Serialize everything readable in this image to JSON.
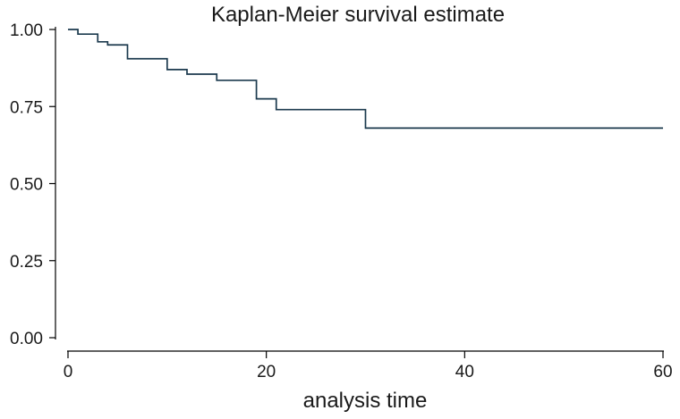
{
  "chart_data": {
    "type": "line",
    "title": "Kaplan-Meier survival estimate",
    "xlabel": "analysis time",
    "ylabel": "",
    "xlim": [
      0,
      60
    ],
    "ylim": [
      0,
      1
    ],
    "xticks": [
      0,
      20,
      40,
      60
    ],
    "xtick_labels": [
      "0",
      "20",
      "40",
      "60"
    ],
    "yticks": [
      0,
      0.25,
      0.5,
      0.75,
      1.0
    ],
    "ytick_labels": [
      "0.00",
      "0.25",
      "0.50",
      "0.75",
      "1.00"
    ],
    "grid": false,
    "line_color": "#1c3a4e",
    "series": [
      {
        "step": "post",
        "x": [
          0,
          1,
          3,
          4,
          6,
          10,
          12,
          15,
          19,
          21,
          30,
          60
        ],
        "y": [
          1.0,
          0.985,
          0.96,
          0.95,
          0.905,
          0.87,
          0.855,
          0.835,
          0.775,
          0.74,
          0.68,
          0.68
        ]
      }
    ]
  }
}
